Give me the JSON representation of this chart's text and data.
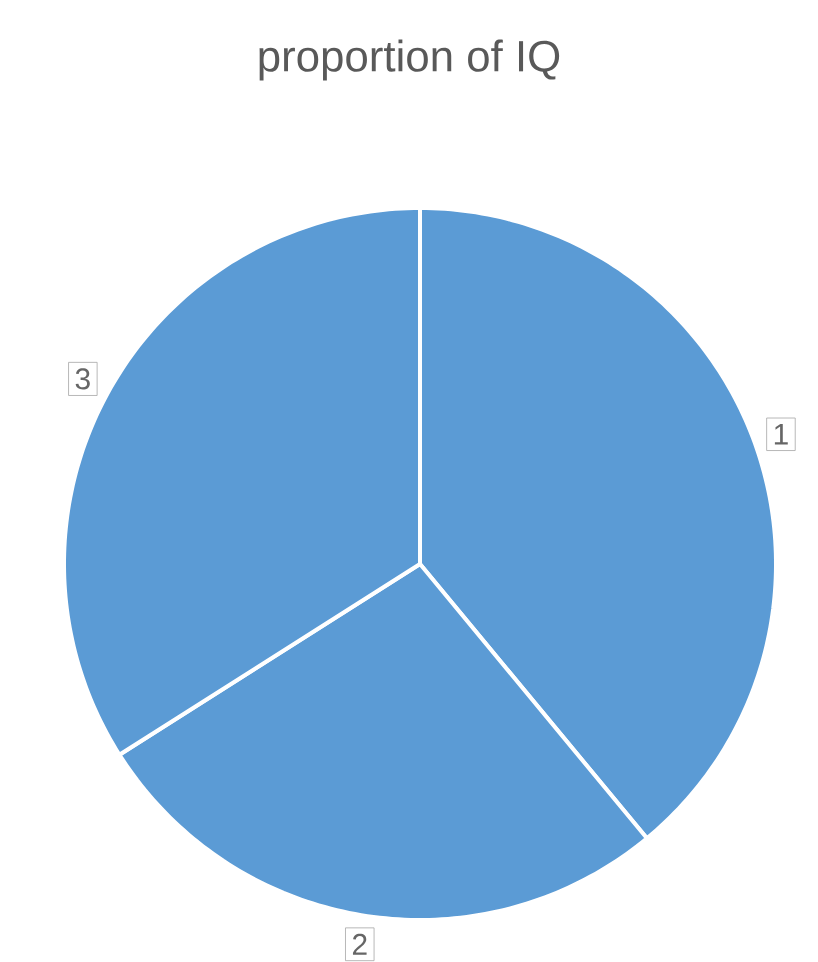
{
  "chart_data": {
    "type": "pie",
    "title": "proportion of IQ",
    "categories": [
      "1",
      "2",
      "3"
    ],
    "values": [
      39,
      27,
      34
    ],
    "colors": [
      "#5b9bd5",
      "#5b9bd5",
      "#5b9bd5"
    ]
  }
}
